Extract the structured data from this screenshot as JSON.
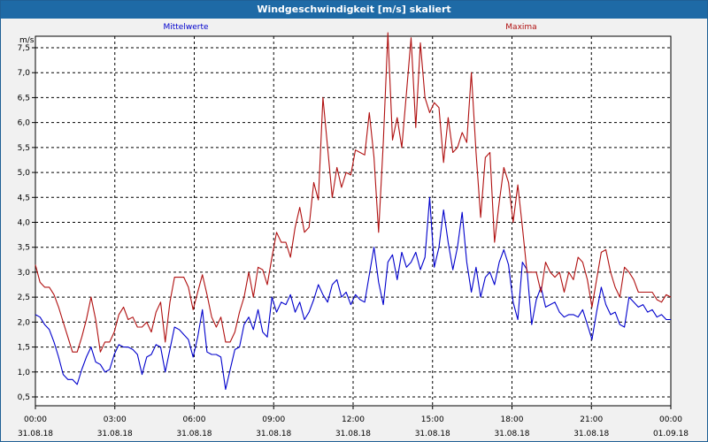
{
  "window": {
    "title": "Windgeschwindigkeit [m/s] skaliert"
  },
  "colors": {
    "mean": "#0000cc",
    "max": "#b01010",
    "title_bar": "#1e6aa6",
    "grid": "#000000"
  },
  "chart_data": {
    "type": "line",
    "title": "Windgeschwindigkeit [m/s] skaliert",
    "ylabel": "m/s",
    "ylim": [
      0.3,
      8.0
    ],
    "grid": true,
    "y_ticks": [
      "0,5",
      "1,0",
      "1,5",
      "2,0",
      "2,5",
      "3,0",
      "3,5",
      "4,0",
      "4,5",
      "5,0",
      "5,5",
      "6,0",
      "6,5",
      "7,0",
      "7,5"
    ],
    "x_ticks": [
      {
        "time": "00:00",
        "date": "31.08.18"
      },
      {
        "time": "03:00",
        "date": "31.08.18"
      },
      {
        "time": "06:00",
        "date": "31.08.18"
      },
      {
        "time": "09:00",
        "date": "31.08.18"
      },
      {
        "time": "12:00",
        "date": "31.08.18"
      },
      {
        "time": "15:00",
        "date": "31.08.18"
      },
      {
        "time": "18:00",
        "date": "31.08.18"
      },
      {
        "time": "21:00",
        "date": "31.08.18"
      },
      {
        "time": "00:00",
        "date": "01.09.18"
      }
    ],
    "x_unit": "hours from 31.08.18 00:00",
    "series": [
      {
        "name": "Mittelwerte",
        "points": [
          [
            0,
            2.15
          ],
          [
            0.2,
            2.1
          ],
          [
            0.4,
            1.95
          ],
          [
            0.6,
            1.85
          ],
          [
            0.8,
            1.6
          ],
          [
            1,
            1.3
          ],
          [
            1.2,
            0.95
          ],
          [
            1.4,
            0.85
          ],
          [
            1.6,
            0.85
          ],
          [
            1.8,
            0.75
          ],
          [
            2,
            1.05
          ],
          [
            2.2,
            1.3
          ],
          [
            2.4,
            1.5
          ],
          [
            2.6,
            1.2
          ],
          [
            2.8,
            1.15
          ],
          [
            3,
            1.0
          ],
          [
            3.2,
            1.05
          ],
          [
            3.4,
            1.35
          ],
          [
            3.6,
            1.55
          ],
          [
            3.8,
            1.5
          ],
          [
            4,
            1.5
          ],
          [
            4.2,
            1.45
          ],
          [
            4.4,
            1.35
          ],
          [
            4.6,
            0.95
          ],
          [
            4.8,
            1.3
          ],
          [
            5,
            1.35
          ],
          [
            5.2,
            1.55
          ],
          [
            5.4,
            1.5
          ],
          [
            5.6,
            1.0
          ],
          [
            5.8,
            1.45
          ],
          [
            6,
            1.9
          ],
          [
            6.2,
            1.85
          ],
          [
            6.4,
            1.75
          ],
          [
            6.6,
            1.65
          ],
          [
            6.8,
            1.3
          ],
          [
            7,
            1.7
          ],
          [
            7.2,
            2.25
          ],
          [
            7.4,
            1.4
          ],
          [
            7.6,
            1.35
          ],
          [
            7.8,
            1.35
          ],
          [
            8,
            1.3
          ],
          [
            8.2,
            0.65
          ],
          [
            8.4,
            1.05
          ],
          [
            8.6,
            1.45
          ],
          [
            8.8,
            1.5
          ],
          [
            9,
            1.95
          ],
          [
            9.2,
            2.1
          ],
          [
            9.4,
            1.85
          ],
          [
            9.6,
            2.25
          ],
          [
            9.8,
            1.8
          ],
          [
            10,
            1.7
          ],
          [
            10.2,
            2.5
          ],
          [
            10.4,
            2.2
          ],
          [
            10.6,
            2.4
          ],
          [
            10.8,
            2.35
          ],
          [
            11,
            2.55
          ],
          [
            11.2,
            2.2
          ],
          [
            11.4,
            2.4
          ],
          [
            11.6,
            2.05
          ],
          [
            11.8,
            2.2
          ],
          [
            12,
            2.45
          ],
          [
            12.2,
            2.75
          ],
          [
            12.4,
            2.55
          ],
          [
            12.6,
            2.4
          ],
          [
            12.8,
            2.75
          ],
          [
            13,
            2.85
          ],
          [
            13.2,
            2.5
          ],
          [
            13.4,
            2.6
          ],
          [
            13.6,
            2.35
          ],
          [
            13.8,
            2.55
          ],
          [
            14,
            2.45
          ],
          [
            14.2,
            2.4
          ],
          [
            14.4,
            2.95
          ],
          [
            14.6,
            3.5
          ],
          [
            14.8,
            2.8
          ],
          [
            15,
            2.35
          ],
          [
            15.2,
            3.2
          ],
          [
            15.4,
            3.35
          ],
          [
            15.6,
            2.85
          ],
          [
            15.8,
            3.4
          ],
          [
            16,
            3.1
          ],
          [
            16.2,
            3.2
          ],
          [
            16.4,
            3.4
          ],
          [
            16.6,
            3.05
          ],
          [
            16.8,
            3.3
          ],
          [
            17,
            4.5
          ],
          [
            17.2,
            3.1
          ],
          [
            17.4,
            3.5
          ],
          [
            17.6,
            4.25
          ],
          [
            17.8,
            3.6
          ],
          [
            18,
            3.05
          ],
          [
            18.2,
            3.5
          ],
          [
            18.4,
            4.2
          ],
          [
            18.6,
            3.2
          ],
          [
            18.8,
            2.6
          ],
          [
            19,
            3.1
          ],
          [
            19.2,
            2.5
          ],
          [
            19.4,
            2.9
          ],
          [
            19.6,
            3.0
          ],
          [
            19.8,
            2.75
          ],
          [
            20,
            3.2
          ],
          [
            20.2,
            3.45
          ],
          [
            20.4,
            3.15
          ],
          [
            20.6,
            2.4
          ],
          [
            20.8,
            2.05
          ],
          [
            21,
            3.2
          ],
          [
            21.2,
            3.05
          ],
          [
            21.4,
            1.95
          ],
          [
            21.6,
            2.45
          ],
          [
            21.8,
            2.7
          ],
          [
            22,
            2.3
          ],
          [
            22.2,
            2.35
          ],
          [
            22.4,
            2.4
          ],
          [
            22.6,
            2.2
          ],
          [
            22.8,
            2.1
          ],
          [
            23,
            2.15
          ],
          [
            23.2,
            2.15
          ],
          [
            23.4,
            2.1
          ],
          [
            23.6,
            2.25
          ],
          [
            23.8,
            1.95
          ],
          [
            24,
            1.65
          ],
          [
            24.2,
            2.2
          ],
          [
            24.4,
            2.7
          ],
          [
            24.6,
            2.35
          ],
          [
            24.8,
            2.15
          ],
          [
            25,
            2.2
          ],
          [
            25.2,
            1.95
          ],
          [
            25.4,
            1.9
          ],
          [
            25.6,
            2.5
          ],
          [
            25.8,
            2.4
          ],
          [
            26,
            2.3
          ],
          [
            26.2,
            2.35
          ],
          [
            26.4,
            2.2
          ],
          [
            26.6,
            2.25
          ],
          [
            26.8,
            2.1
          ],
          [
            27,
            2.15
          ],
          [
            27.2,
            2.05
          ],
          [
            27.4,
            2.05
          ]
        ]
      },
      {
        "name": "Maxima",
        "points": [
          [
            0,
            3.15
          ],
          [
            0.2,
            2.8
          ],
          [
            0.4,
            2.7
          ],
          [
            0.6,
            2.7
          ],
          [
            0.8,
            2.55
          ],
          [
            1,
            2.3
          ],
          [
            1.2,
            2.0
          ],
          [
            1.4,
            1.7
          ],
          [
            1.6,
            1.4
          ],
          [
            1.8,
            1.4
          ],
          [
            2,
            1.7
          ],
          [
            2.2,
            2.05
          ],
          [
            2.4,
            2.5
          ],
          [
            2.6,
            2.05
          ],
          [
            2.8,
            1.4
          ],
          [
            3,
            1.6
          ],
          [
            3.2,
            1.6
          ],
          [
            3.4,
            1.8
          ],
          [
            3.6,
            2.15
          ],
          [
            3.8,
            2.3
          ],
          [
            4,
            2.05
          ],
          [
            4.2,
            2.1
          ],
          [
            4.4,
            1.9
          ],
          [
            4.6,
            1.9
          ],
          [
            4.8,
            2.0
          ],
          [
            5,
            1.8
          ],
          [
            5.2,
            2.2
          ],
          [
            5.4,
            2.4
          ],
          [
            5.6,
            1.6
          ],
          [
            5.8,
            2.4
          ],
          [
            6,
            2.9
          ],
          [
            6.2,
            2.9
          ],
          [
            6.4,
            2.9
          ],
          [
            6.6,
            2.7
          ],
          [
            6.8,
            2.25
          ],
          [
            7,
            2.6
          ],
          [
            7.2,
            2.95
          ],
          [
            7.4,
            2.55
          ],
          [
            7.6,
            2.1
          ],
          [
            7.8,
            1.9
          ],
          [
            8,
            2.1
          ],
          [
            8.2,
            1.6
          ],
          [
            8.4,
            1.6
          ],
          [
            8.6,
            1.8
          ],
          [
            8.8,
            2.2
          ],
          [
            9,
            2.5
          ],
          [
            9.2,
            3.0
          ],
          [
            9.4,
            2.5
          ],
          [
            9.6,
            3.1
          ],
          [
            9.8,
            3.05
          ],
          [
            10,
            2.75
          ],
          [
            10.2,
            3.3
          ],
          [
            10.4,
            3.8
          ],
          [
            10.6,
            3.6
          ],
          [
            10.8,
            3.6
          ],
          [
            11,
            3.3
          ],
          [
            11.2,
            3.9
          ],
          [
            11.4,
            4.3
          ],
          [
            11.6,
            3.8
          ],
          [
            11.8,
            3.9
          ],
          [
            12,
            4.8
          ],
          [
            12.2,
            4.45
          ],
          [
            12.4,
            6.5
          ],
          [
            12.6,
            5.5
          ],
          [
            12.8,
            4.5
          ],
          [
            13,
            5.1
          ],
          [
            13.2,
            4.7
          ],
          [
            13.4,
            5.0
          ],
          [
            13.6,
            4.95
          ],
          [
            13.8,
            5.45
          ],
          [
            14,
            5.4
          ],
          [
            14.2,
            5.35
          ],
          [
            14.4,
            6.2
          ],
          [
            14.6,
            5.3
          ],
          [
            14.8,
            3.8
          ],
          [
            15,
            5.6
          ],
          [
            15.2,
            7.8
          ],
          [
            15.4,
            5.65
          ],
          [
            15.6,
            6.1
          ],
          [
            15.8,
            5.5
          ],
          [
            16,
            6.6
          ],
          [
            16.2,
            7.7
          ],
          [
            16.4,
            5.9
          ],
          [
            16.6,
            7.6
          ],
          [
            16.8,
            6.5
          ],
          [
            17,
            6.2
          ],
          [
            17.2,
            6.4
          ],
          [
            17.4,
            6.3
          ],
          [
            17.6,
            5.2
          ],
          [
            17.8,
            6.1
          ],
          [
            18,
            5.4
          ],
          [
            18.2,
            5.5
          ],
          [
            18.4,
            5.8
          ],
          [
            18.6,
            5.6
          ],
          [
            18.8,
            7.0
          ],
          [
            19,
            5.4
          ],
          [
            19.2,
            4.1
          ],
          [
            19.4,
            5.3
          ],
          [
            19.6,
            5.4
          ],
          [
            19.8,
            3.6
          ],
          [
            20,
            4.4
          ],
          [
            20.2,
            5.1
          ],
          [
            20.4,
            4.8
          ],
          [
            20.6,
            4.0
          ],
          [
            20.8,
            4.75
          ],
          [
            21,
            3.9
          ],
          [
            21.2,
            3.0
          ],
          [
            21.4,
            3.0
          ],
          [
            21.6,
            3.0
          ],
          [
            21.8,
            2.6
          ],
          [
            22,
            3.2
          ],
          [
            22.2,
            3.0
          ],
          [
            22.4,
            2.9
          ],
          [
            22.6,
            3.0
          ],
          [
            22.8,
            2.6
          ],
          [
            23,
            3.0
          ],
          [
            23.2,
            2.85
          ],
          [
            23.4,
            3.3
          ],
          [
            23.6,
            3.2
          ],
          [
            23.8,
            2.85
          ],
          [
            24,
            2.3
          ],
          [
            24.2,
            2.85
          ],
          [
            24.4,
            3.4
          ],
          [
            24.6,
            3.45
          ],
          [
            24.8,
            3.0
          ],
          [
            25,
            2.7
          ],
          [
            25.2,
            2.5
          ],
          [
            25.4,
            3.1
          ],
          [
            25.6,
            3.0
          ],
          [
            25.8,
            2.85
          ],
          [
            26,
            2.6
          ],
          [
            26.2,
            2.6
          ],
          [
            26.4,
            2.6
          ],
          [
            26.6,
            2.6
          ],
          [
            26.8,
            2.45
          ],
          [
            27,
            2.4
          ],
          [
            27.2,
            2.55
          ],
          [
            27.4,
            2.5
          ]
        ]
      }
    ]
  }
}
